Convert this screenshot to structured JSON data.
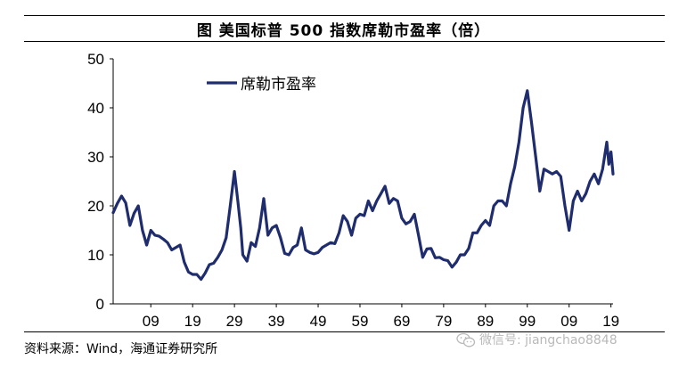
{
  "title": "图  美国标普 500 指数席勒市盈率（倍）",
  "source": "资料来源：Wind，海通证券研究所",
  "watermark": "微信号: jiangchao8848",
  "watermark_icon": "wechat-icon",
  "line_color": "#1f2d6e",
  "chart_data": {
    "type": "line",
    "title": "",
    "xlabel": "",
    "ylabel": "",
    "ylim": [
      0,
      50
    ],
    "yticks": [
      0,
      10,
      20,
      30,
      40,
      50
    ],
    "xlim": [
      1900,
      2019.5
    ],
    "xticks": [
      {
        "value": 1909,
        "label": "09"
      },
      {
        "value": 1919,
        "label": "19"
      },
      {
        "value": 1929,
        "label": "29"
      },
      {
        "value": 1939,
        "label": "39"
      },
      {
        "value": 1949,
        "label": "49"
      },
      {
        "value": 1959,
        "label": "59"
      },
      {
        "value": 1969,
        "label": "69"
      },
      {
        "value": 1979,
        "label": "79"
      },
      {
        "value": 1989,
        "label": "89"
      },
      {
        "value": 1999,
        "label": "99"
      },
      {
        "value": 2009,
        "label": "09"
      },
      {
        "value": 2019,
        "label": "19"
      }
    ],
    "grid": false,
    "legend_position": "top-left",
    "series": [
      {
        "name": "席勒市盈率",
        "x": [
          1900,
          1901,
          1902,
          1903,
          1904,
          1905,
          1906,
          1907,
          1908,
          1909,
          1910,
          1911,
          1912,
          1913,
          1914,
          1915,
          1916,
          1917,
          1918,
          1919,
          1920,
          1921,
          1922,
          1923,
          1924,
          1925,
          1926,
          1927,
          1928,
          1929,
          1929.8,
          1930.5,
          1931,
          1932,
          1933,
          1934,
          1935,
          1936,
          1937,
          1938,
          1939,
          1940,
          1941,
          1942,
          1943,
          1944,
          1945,
          1946,
          1947,
          1948,
          1949,
          1950,
          1951,
          1952,
          1953,
          1954,
          1955,
          1956,
          1957,
          1958,
          1959,
          1960,
          1961,
          1962,
          1963,
          1964,
          1965,
          1966,
          1967,
          1968,
          1969,
          1970,
          1971,
          1972,
          1973,
          1974,
          1975,
          1976,
          1977,
          1978,
          1979,
          1980,
          1981,
          1982,
          1983,
          1984,
          1985,
          1986,
          1987,
          1988,
          1989,
          1990,
          1991,
          1992,
          1993,
          1994,
          1995,
          1996,
          1997,
          1998,
          1999,
          2000,
          2001,
          2002,
          2003,
          2004,
          2005,
          2006,
          2007,
          2008,
          2009,
          2010,
          2011,
          2012,
          2013,
          2014,
          2015,
          2016,
          2017,
          2018,
          2018.5,
          2019,
          2019.5
        ],
        "y": [
          18.6,
          20.5,
          22.0,
          20.6,
          16.0,
          18.5,
          20.0,
          15.0,
          12.0,
          15.0,
          14.0,
          13.8,
          13.2,
          12.5,
          11.0,
          11.5,
          12.0,
          8.5,
          6.5,
          6.0,
          6.0,
          5.0,
          6.3,
          8.0,
          8.3,
          9.5,
          11.0,
          13.5,
          20.0,
          27.0,
          21.0,
          15.5,
          10.0,
          8.7,
          12.5,
          11.7,
          15.5,
          21.5,
          14.0,
          15.5,
          16.0,
          13.5,
          10.3,
          10.0,
          11.5,
          12.0,
          15.5,
          11.0,
          10.5,
          10.2,
          10.5,
          11.5,
          12.0,
          12.5,
          12.3,
          14.5,
          18.0,
          16.8,
          14.0,
          17.5,
          18.3,
          18.0,
          21.0,
          19.0,
          21.0,
          22.5,
          24.0,
          20.5,
          21.5,
          21.0,
          17.5,
          16.3,
          16.8,
          18.3,
          14.0,
          9.5,
          11.2,
          11.3,
          9.4,
          9.5,
          9.0,
          8.8,
          7.5,
          8.5,
          10.0,
          10.0,
          11.3,
          14.5,
          14.5,
          16.0,
          17.0,
          16.0,
          20.0,
          21.0,
          21.0,
          20.0,
          24.5,
          28.0,
          33.0,
          40.0,
          43.5,
          37.0,
          30.0,
          23.0,
          27.5,
          27.0,
          26.5,
          27.0,
          26.0,
          20.0,
          15.0,
          21.0,
          23.0,
          21.0,
          22.5,
          25.0,
          26.5,
          24.5,
          27.5,
          33.0,
          28.5,
          31.0,
          26.5
        ]
      }
    ]
  }
}
